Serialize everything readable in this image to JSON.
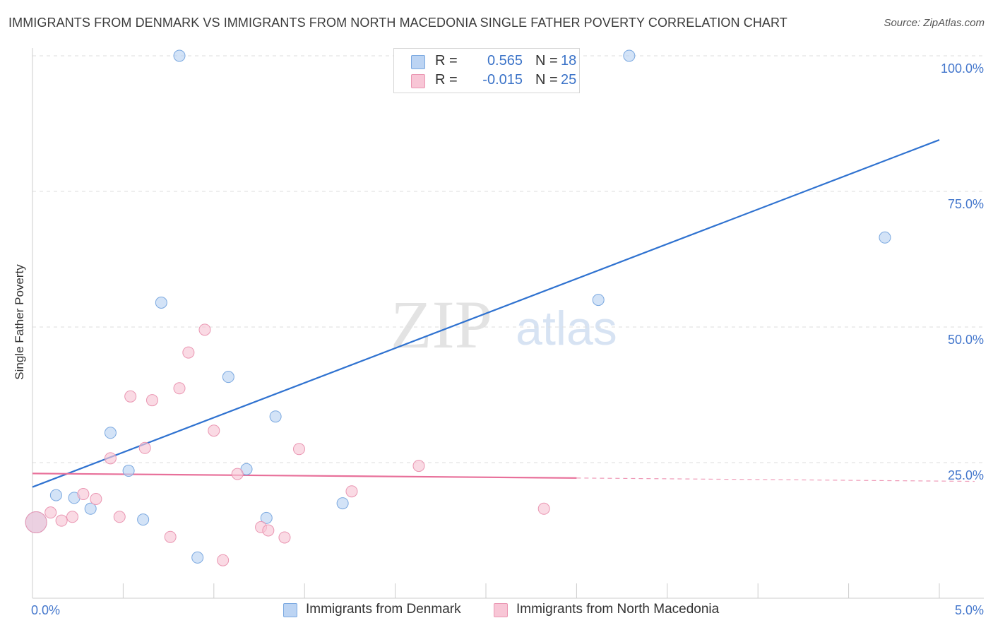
{
  "title": "IMMIGRANTS FROM DENMARK VS IMMIGRANTS FROM NORTH MACEDONIA SINGLE FATHER POVERTY CORRELATION CHART",
  "source": "Source: ZipAtlas.com",
  "watermark": {
    "zip": "ZIP",
    "atlas": "atlas"
  },
  "legend_top": {
    "rows": [
      {
        "r_label": "R =",
        "r_value": "0.565",
        "n_label": "N =",
        "n_value": "18"
      },
      {
        "r_label": "R =",
        "r_value": "-0.015",
        "n_label": "N =",
        "n_value": "25"
      }
    ]
  },
  "legend_bottom": {
    "items": [
      "Immigrants from Denmark",
      "Immigrants from North Macedonia"
    ]
  },
  "colors": {
    "denmark_fill": "#bcd4f3",
    "denmark_stroke": "#7aa8e0",
    "denmark_line": "#2f72d0",
    "macedonia_fill": "#f8c6d6",
    "macedonia_stroke": "#ea96b2",
    "macedonia_line": "#e8709a",
    "axis_text": "#4477cc",
    "grid": "#dddddd"
  },
  "chart_data": {
    "type": "scatter",
    "xlabel": "",
    "ylabel": "Single Father Poverty",
    "xlim": [
      0,
      5
    ],
    "ylim": [
      0,
      100
    ],
    "x_tick_labels": {
      "min": "0.0%",
      "max": "5.0%"
    },
    "y_ticks": [
      {
        "value": 25,
        "label": "25.0%"
      },
      {
        "value": 50,
        "label": "50.0%"
      },
      {
        "value": 75,
        "label": "75.0%"
      },
      {
        "value": 100,
        "label": "100.0%"
      }
    ],
    "series": [
      {
        "name": "Immigrants from Denmark",
        "R": 0.565,
        "N": 18,
        "trend": {
          "x": [
            0,
            5
          ],
          "y": [
            20.5,
            84.5
          ],
          "dashed_from": null
        },
        "points": [
          {
            "x": 0.02,
            "y": 14.0,
            "big": true
          },
          {
            "x": 0.13,
            "y": 19.0
          },
          {
            "x": 0.23,
            "y": 18.5
          },
          {
            "x": 0.32,
            "y": 16.5
          },
          {
            "x": 0.43,
            "y": 30.5
          },
          {
            "x": 0.53,
            "y": 23.5
          },
          {
            "x": 0.61,
            "y": 14.5
          },
          {
            "x": 0.71,
            "y": 54.5
          },
          {
            "x": 0.81,
            "y": 100.0
          },
          {
            "x": 0.91,
            "y": 7.5
          },
          {
            "x": 1.08,
            "y": 40.8
          },
          {
            "x": 1.18,
            "y": 23.8
          },
          {
            "x": 1.29,
            "y": 14.8
          },
          {
            "x": 1.34,
            "y": 33.5
          },
          {
            "x": 1.71,
            "y": 17.5
          },
          {
            "x": 3.12,
            "y": 55.0
          },
          {
            "x": 3.29,
            "y": 100.0
          },
          {
            "x": 4.7,
            "y": 66.5
          }
        ]
      },
      {
        "name": "Immigrants from North Macedonia",
        "R": -0.015,
        "N": 25,
        "trend": {
          "x": [
            0,
            5
          ],
          "y": [
            23.0,
            21.6
          ],
          "dashed_from": 3.0
        },
        "points": [
          {
            "x": 0.02,
            "y": 14.0,
            "big": true
          },
          {
            "x": 0.1,
            "y": 15.8
          },
          {
            "x": 0.16,
            "y": 14.3
          },
          {
            "x": 0.22,
            "y": 15.0
          },
          {
            "x": 0.28,
            "y": 19.2
          },
          {
            "x": 0.35,
            "y": 18.3
          },
          {
            "x": 0.43,
            "y": 25.8
          },
          {
            "x": 0.48,
            "y": 15.0
          },
          {
            "x": 0.54,
            "y": 37.2
          },
          {
            "x": 0.62,
            "y": 27.7
          },
          {
            "x": 0.66,
            "y": 36.5
          },
          {
            "x": 0.76,
            "y": 11.3
          },
          {
            "x": 0.81,
            "y": 38.7
          },
          {
            "x": 0.86,
            "y": 45.3
          },
          {
            "x": 0.95,
            "y": 49.5
          },
          {
            "x": 1.0,
            "y": 30.9
          },
          {
            "x": 1.05,
            "y": 7.0
          },
          {
            "x": 1.13,
            "y": 22.9
          },
          {
            "x": 1.26,
            "y": 13.1
          },
          {
            "x": 1.3,
            "y": 12.5
          },
          {
            "x": 1.39,
            "y": 11.2
          },
          {
            "x": 1.47,
            "y": 27.5
          },
          {
            "x": 1.76,
            "y": 19.7
          },
          {
            "x": 2.13,
            "y": 24.4
          },
          {
            "x": 2.82,
            "y": 16.5
          }
        ]
      }
    ]
  }
}
